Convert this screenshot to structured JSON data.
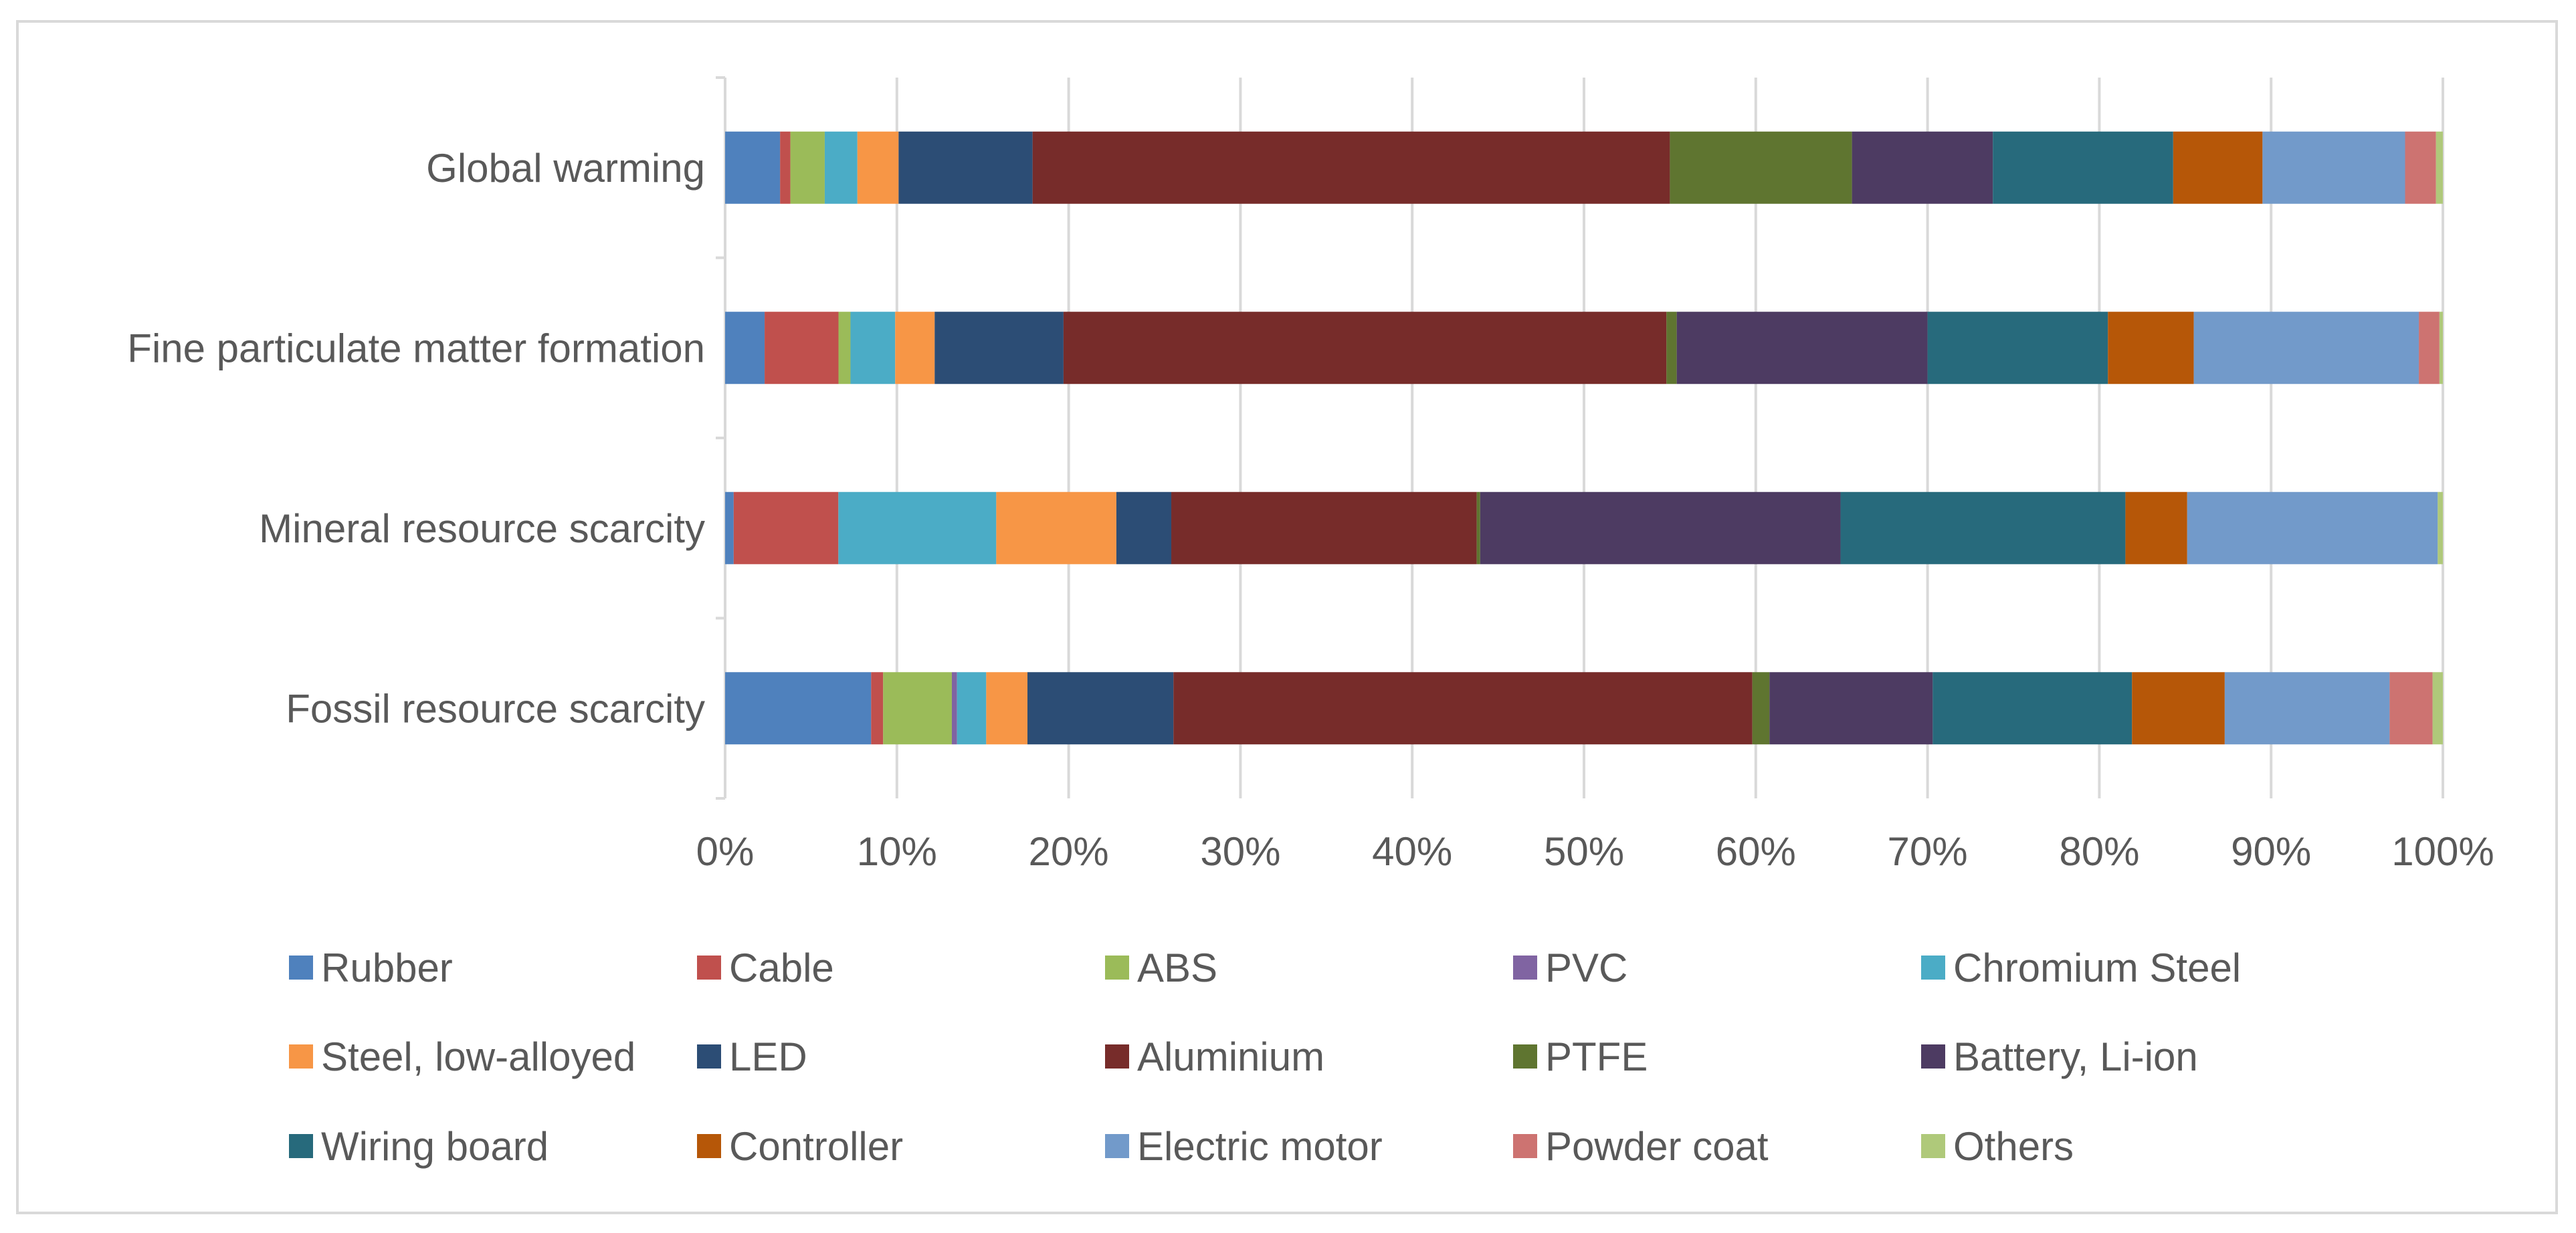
{
  "chart_data": {
    "type": "bar",
    "orientation": "horizontal",
    "stacked": "percent",
    "title": "",
    "xlabel": "",
    "ylabel": "",
    "xlim": [
      0,
      100
    ],
    "x_ticks": [
      "0%",
      "10%",
      "20%",
      "30%",
      "40%",
      "50%",
      "60%",
      "70%",
      "80%",
      "90%",
      "100%"
    ],
    "grid": "vertical",
    "legend_position": "bottom",
    "categories": [
      "Global warming",
      "Fine particulate matter formation",
      "Mineral resource scarcity",
      "Fossil resource scarcity"
    ],
    "series": [
      {
        "name": "Rubber",
        "color": "#4F81BD",
        "values": [
          3.2,
          2.3,
          0.5,
          8.5
        ]
      },
      {
        "name": "Cable",
        "color": "#C0504D",
        "values": [
          0.6,
          4.3,
          6.1,
          0.7
        ]
      },
      {
        "name": "ABS",
        "color": "#9BBB59",
        "values": [
          2.0,
          0.7,
          0.0,
          4.0
        ]
      },
      {
        "name": "PVC",
        "color": "#8064A2",
        "values": [
          0.0,
          0.0,
          0.0,
          0.3
        ]
      },
      {
        "name": "Chromium Steel",
        "color": "#4BACC6",
        "values": [
          1.9,
          2.6,
          9.2,
          1.7
        ]
      },
      {
        "name": "Steel, low-alloyed",
        "color": "#F79646",
        "values": [
          2.4,
          2.3,
          7.0,
          2.4
        ]
      },
      {
        "name": "LED",
        "color": "#2C4D75",
        "values": [
          7.8,
          7.5,
          3.2,
          8.5
        ]
      },
      {
        "name": "Aluminium",
        "color": "#772C2A",
        "values": [
          37.1,
          35.1,
          17.8,
          33.7
        ]
      },
      {
        "name": "PTFE",
        "color": "#5F7530",
        "values": [
          10.6,
          0.6,
          0.2,
          1.0
        ]
      },
      {
        "name": "Battery, Li-ion",
        "color": "#4D3B62",
        "values": [
          8.2,
          14.6,
          21.0,
          9.5
        ]
      },
      {
        "name": "Wiring board",
        "color": "#276A7C",
        "values": [
          10.5,
          10.5,
          16.6,
          11.6
        ]
      },
      {
        "name": "Controller",
        "color": "#B65708",
        "values": [
          5.2,
          5.0,
          3.6,
          5.4
        ]
      },
      {
        "name": "Electric motor",
        "color": "#729ACA",
        "values": [
          8.3,
          13.1,
          14.6,
          9.6
        ]
      },
      {
        "name": "Powder coat",
        "color": "#CD7371",
        "values": [
          1.8,
          1.2,
          0.0,
          2.5
        ]
      },
      {
        "name": "Others",
        "color": "#AFC97A",
        "values": [
          0.4,
          0.2,
          0.3,
          0.6
        ]
      }
    ]
  }
}
